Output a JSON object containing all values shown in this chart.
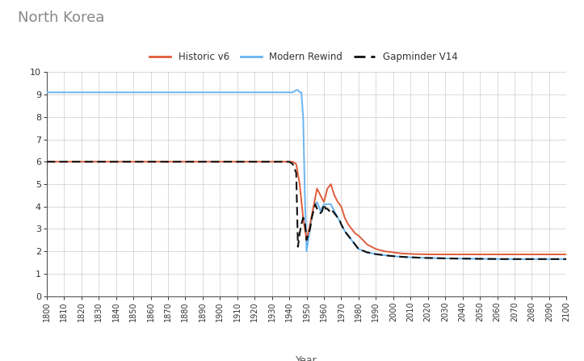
{
  "title": "North Korea",
  "xlabel": "Year",
  "ylabel": "",
  "title_color": "#888888",
  "background_color": "#ffffff",
  "plot_bg_color": "#ffffff",
  "grid_color": "#cccccc",
  "ylim": [
    0,
    10
  ],
  "xlim": [
    1800,
    2100
  ],
  "yticks": [
    0,
    1,
    2,
    3,
    4,
    5,
    6,
    7,
    8,
    9,
    10
  ],
  "xticks": [
    1800,
    1810,
    1820,
    1830,
    1840,
    1850,
    1860,
    1870,
    1880,
    1890,
    1900,
    1910,
    1920,
    1930,
    1940,
    1950,
    1960,
    1970,
    1980,
    1990,
    2000,
    2010,
    2020,
    2030,
    2040,
    2050,
    2060,
    2070,
    2080,
    2090,
    2100
  ],
  "legend_labels": [
    "Historic v6",
    "Modern Rewind",
    "Gapminder V14"
  ],
  "legend_colors": [
    "#e05c3a",
    "#6ab4f0",
    "#111111"
  ],
  "historic_v6": {
    "years": [
      1800,
      1920,
      1925,
      1930,
      1932,
      1934,
      1936,
      1938,
      1940,
      1942,
      1944,
      1946,
      1948,
      1950,
      1952,
      1954,
      1956,
      1958,
      1960,
      1962,
      1964,
      1966,
      1968,
      1970,
      1972,
      1974,
      1976,
      1978,
      1980,
      1985,
      1990,
      1995,
      2000,
      2005,
      2010,
      2015,
      2020,
      2025,
      2030,
      2040,
      2050,
      2060,
      2070,
      2080,
      2090,
      2100
    ],
    "values": [
      6.0,
      6.0,
      6.0,
      6.0,
      6.0,
      6.0,
      6.0,
      6.0,
      6.0,
      6.0,
      5.9,
      5.0,
      3.5,
      2.5,
      3.2,
      4.0,
      4.8,
      4.5,
      4.2,
      4.8,
      5.0,
      4.5,
      4.2,
      4.0,
      3.5,
      3.2,
      3.0,
      2.8,
      2.7,
      2.3,
      2.1,
      2.0,
      1.95,
      1.9,
      1.88,
      1.87,
      1.86,
      1.86,
      1.86,
      1.86,
      1.86,
      1.86,
      1.86,
      1.86,
      1.86,
      1.86
    ]
  },
  "modern_rewind": {
    "years": [
      1800,
      1920,
      1930,
      1935,
      1940,
      1942,
      1944,
      1945,
      1946,
      1947,
      1948,
      1949,
      1950,
      1952,
      1954,
      1956,
      1958,
      1960,
      1962,
      1964,
      1966,
      1968,
      1970,
      1972,
      1974,
      1976,
      1978,
      1980,
      1985,
      1990,
      1995,
      2000,
      2005,
      2010,
      2015,
      2020,
      2025,
      2030,
      2040,
      2050,
      2060,
      2070,
      2080,
      2090,
      2100
    ],
    "values": [
      9.1,
      9.1,
      9.1,
      9.1,
      9.1,
      9.1,
      9.2,
      9.2,
      9.1,
      9.1,
      8.0,
      4.5,
      2.0,
      3.0,
      4.0,
      4.2,
      3.8,
      4.1,
      4.1,
      4.1,
      3.8,
      3.5,
      3.2,
      2.9,
      2.7,
      2.5,
      2.3,
      2.1,
      1.95,
      1.87,
      1.82,
      1.78,
      1.75,
      1.73,
      1.71,
      1.7,
      1.69,
      1.68,
      1.67,
      1.66,
      1.65,
      1.65,
      1.65,
      1.65,
      1.65
    ]
  },
  "gapminder_v14": {
    "years": [
      1800,
      1920,
      1925,
      1930,
      1932,
      1934,
      1936,
      1938,
      1940,
      1942,
      1944,
      1945,
      1946,
      1947,
      1948,
      1949,
      1950,
      1952,
      1953,
      1954,
      1955,
      1956,
      1957,
      1958,
      1959,
      1960,
      1961,
      1962,
      1963,
      1964,
      1965,
      1966,
      1967,
      1968,
      1969,
      1970,
      1972,
      1974,
      1976,
      1978,
      1980,
      1985,
      1990,
      1995,
      2000,
      2005,
      2010,
      2015,
      2020,
      2025,
      2030,
      2040,
      2050,
      2060,
      2070,
      2080,
      2090,
      2100
    ],
    "values": [
      6.0,
      6.0,
      6.0,
      6.0,
      6.0,
      6.0,
      6.0,
      6.0,
      6.0,
      5.9,
      5.5,
      2.2,
      2.8,
      3.2,
      3.5,
      3.3,
      2.5,
      3.0,
      3.5,
      3.8,
      4.1,
      3.9,
      3.8,
      3.7,
      3.8,
      4.1,
      3.9,
      3.9,
      3.8,
      3.9,
      3.8,
      3.7,
      3.6,
      3.5,
      3.4,
      3.2,
      2.9,
      2.7,
      2.5,
      2.3,
      2.1,
      1.95,
      1.87,
      1.82,
      1.78,
      1.75,
      1.73,
      1.71,
      1.7,
      1.69,
      1.68,
      1.67,
      1.66,
      1.65,
      1.65,
      1.65,
      1.65,
      1.65
    ]
  }
}
